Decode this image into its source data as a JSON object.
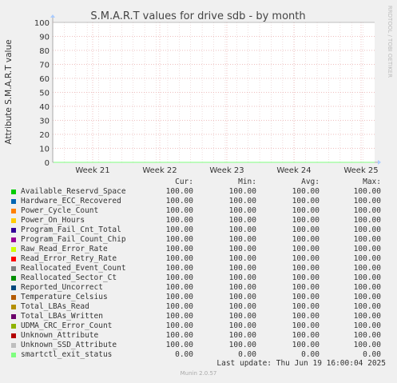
{
  "chart_data": {
    "type": "line",
    "title": "S.M.A.R.T values for drive sdb - by month",
    "ylabel": "Attribute S.M.A.R.T value",
    "watermark": "RRDTOOL / TOBI OETIKER",
    "ylim": [
      0,
      100
    ],
    "yticks": [
      0,
      10,
      20,
      30,
      40,
      50,
      60,
      70,
      80,
      90,
      100
    ],
    "xticks": [
      "Week 21",
      "Week 22",
      "Week 23",
      "Week 24",
      "Week 25"
    ],
    "grid": true,
    "columns": [
      "Cur:",
      "Min:",
      "Avg:",
      "Max:"
    ],
    "series": [
      {
        "name": "Available_Reservd_Space",
        "color": "#00cc00",
        "cur": "100.00",
        "min": "100.00",
        "avg": "100.00",
        "max": "100.00"
      },
      {
        "name": "Hardware_ECC_Recovered",
        "color": "#0066b3",
        "cur": "100.00",
        "min": "100.00",
        "avg": "100.00",
        "max": "100.00"
      },
      {
        "name": "Power_Cycle_Count",
        "color": "#ff8000",
        "cur": "100.00",
        "min": "100.00",
        "avg": "100.00",
        "max": "100.00"
      },
      {
        "name": "Power_On_Hours",
        "color": "#ffcc00",
        "cur": "100.00",
        "min": "100.00",
        "avg": "100.00",
        "max": "100.00"
      },
      {
        "name": "Program_Fail_Cnt_Total",
        "color": "#330099",
        "cur": "100.00",
        "min": "100.00",
        "avg": "100.00",
        "max": "100.00"
      },
      {
        "name": "Program_Fail_Count_Chip",
        "color": "#990099",
        "cur": "100.00",
        "min": "100.00",
        "avg": "100.00",
        "max": "100.00"
      },
      {
        "name": "Raw_Read_Error_Rate",
        "color": "#ccff00",
        "cur": "100.00",
        "min": "100.00",
        "avg": "100.00",
        "max": "100.00"
      },
      {
        "name": "Read_Error_Retry_Rate",
        "color": "#ff0000",
        "cur": "100.00",
        "min": "100.00",
        "avg": "100.00",
        "max": "100.00"
      },
      {
        "name": "Reallocated_Event_Count",
        "color": "#808080",
        "cur": "100.00",
        "min": "100.00",
        "avg": "100.00",
        "max": "100.00"
      },
      {
        "name": "Reallocated_Sector_Ct",
        "color": "#008f00",
        "cur": "100.00",
        "min": "100.00",
        "avg": "100.00",
        "max": "100.00"
      },
      {
        "name": "Reported_Uncorrect",
        "color": "#00487d",
        "cur": "100.00",
        "min": "100.00",
        "avg": "100.00",
        "max": "100.00"
      },
      {
        "name": "Temperature_Celsius",
        "color": "#b35a00",
        "cur": "100.00",
        "min": "100.00",
        "avg": "100.00",
        "max": "100.00"
      },
      {
        "name": "Total_LBAs_Read",
        "color": "#b38f00",
        "cur": "100.00",
        "min": "100.00",
        "avg": "100.00",
        "max": "100.00"
      },
      {
        "name": "Total_LBAs_Written",
        "color": "#6b006b",
        "cur": "100.00",
        "min": "100.00",
        "avg": "100.00",
        "max": "100.00"
      },
      {
        "name": "UDMA_CRC_Error_Count",
        "color": "#8fb300",
        "cur": "100.00",
        "min": "100.00",
        "avg": "100.00",
        "max": "100.00"
      },
      {
        "name": "Unknown_Attribute",
        "color": "#b30000",
        "cur": "100.00",
        "min": "100.00",
        "avg": "100.00",
        "max": "100.00"
      },
      {
        "name": "Unknown_SSD_Attribute",
        "color": "#bebebe",
        "cur": "100.00",
        "min": "100.00",
        "avg": "100.00",
        "max": "100.00"
      },
      {
        "name": "smartctl_exit_status",
        "color": "#80ff80",
        "cur": "0.00",
        "min": "0.00",
        "avg": "0.00",
        "max": "0.00"
      }
    ]
  },
  "last_update": "Last update: Thu Jun 19 16:00:04 2025",
  "footer": "Munin 2.0.57"
}
